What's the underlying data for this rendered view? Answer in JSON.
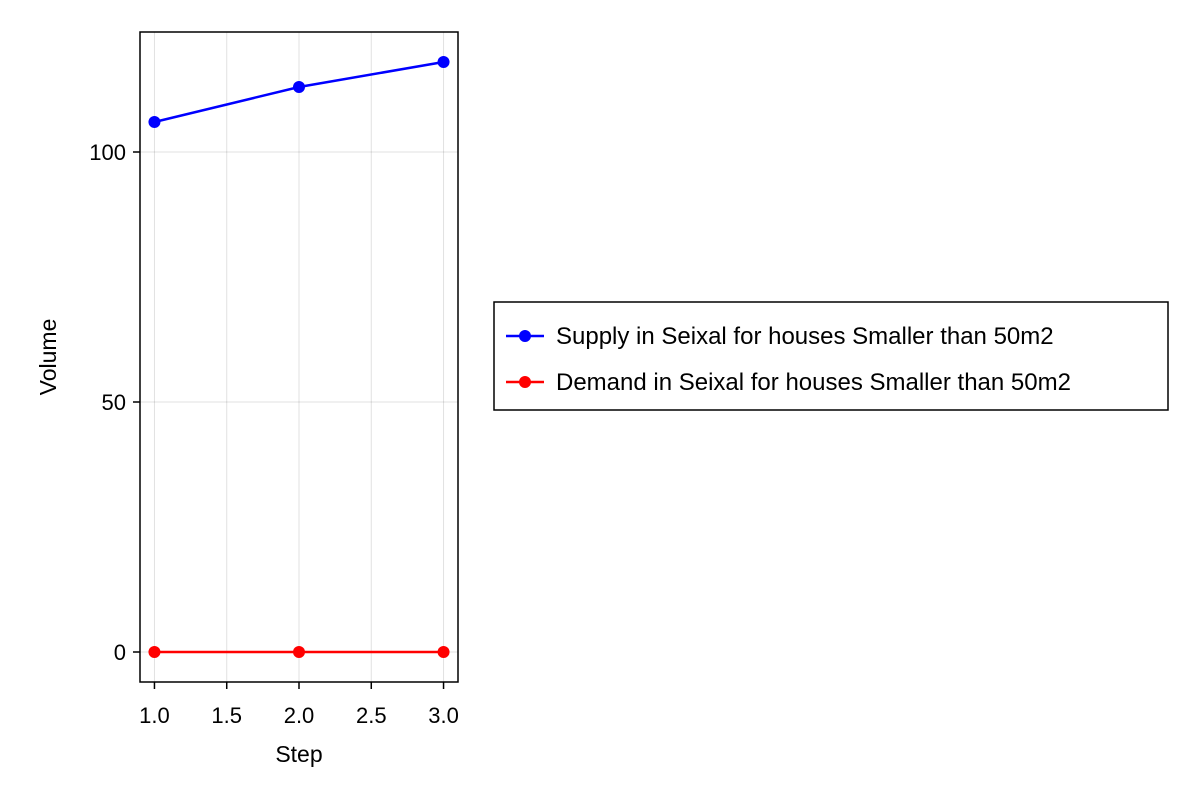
{
  "chart_data": {
    "type": "line",
    "xlabel": "Step",
    "ylabel": "Volume",
    "xlim": [
      0.9,
      3.1
    ],
    "ylim": [
      -6,
      124
    ],
    "xticks": [
      1.0,
      1.5,
      2.0,
      2.5,
      3.0
    ],
    "xtick_labels": [
      "1.0",
      "1.5",
      "2.0",
      "2.5",
      "3.0"
    ],
    "yticks": [
      0,
      50,
      100
    ],
    "ytick_labels": [
      "0",
      "50",
      "100"
    ],
    "grid": true,
    "legend_placement": "right",
    "series": [
      {
        "name": "Supply in Seixal for houses Smaller than 50m2",
        "color": "#0000ff",
        "x": [
          1,
          2,
          3
        ],
        "y": [
          106,
          113,
          118
        ]
      },
      {
        "name": "Demand in Seixal for houses Smaller than 50m2",
        "color": "#ff0000",
        "x": [
          1,
          2,
          3
        ],
        "y": [
          0,
          0,
          0
        ]
      }
    ]
  }
}
